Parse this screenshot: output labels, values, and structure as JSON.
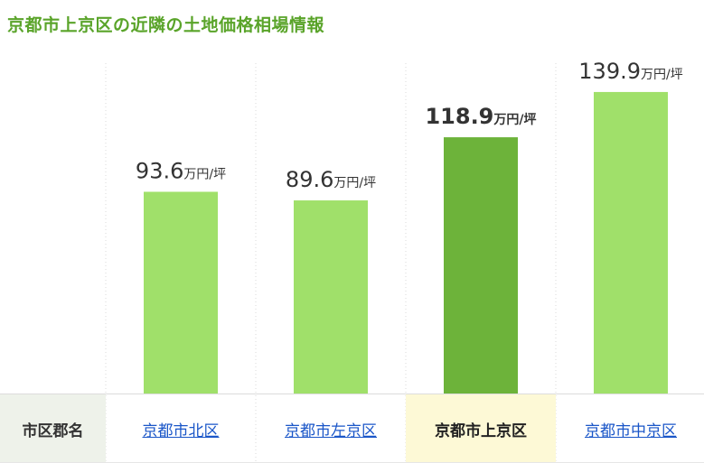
{
  "title": "京都市上京区の近隣の土地価格相場情報",
  "row_label": "市区郡名",
  "colors": {
    "title": "#5aa42a",
    "bar": "#a0e06a",
    "bar_highlight": "#6db33a",
    "link": "#1a56c8",
    "highlight_cell": "#fdf9d6",
    "label_cell": "#eef2ea"
  },
  "chart_data": {
    "type": "bar",
    "categories": [
      "京都市北区",
      "京都市左京区",
      "京都市上京区",
      "京都市中京区"
    ],
    "values": [
      93.6,
      89.6,
      118.9,
      139.9
    ],
    "value_labels": [
      "93.6",
      "89.6",
      "118.9",
      "139.9"
    ],
    "unit": "万円/坪",
    "highlight_index": 2,
    "ylim": [
      0,
      165
    ],
    "grid": false,
    "legend": "none"
  }
}
